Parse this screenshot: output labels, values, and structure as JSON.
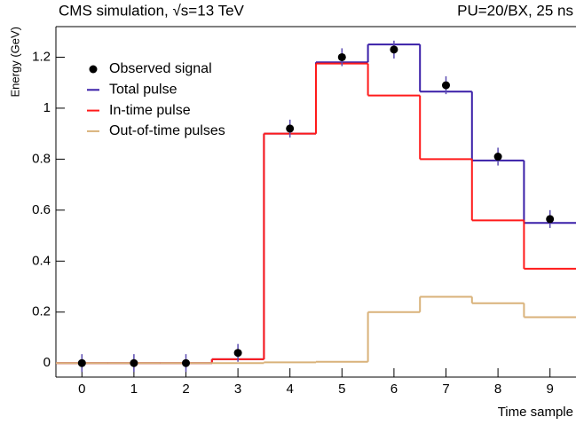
{
  "chart_data": {
    "type": "step",
    "title": "CMS simulation, √s=13 TeV",
    "subtitle": "PU=20/BX, 25 ns",
    "x_label": "Time sample",
    "y_label": "Energy (GeV)",
    "x": [
      0,
      1,
      2,
      3,
      4,
      5,
      6,
      7,
      8,
      9
    ],
    "xlim": [
      -0.5,
      9.5
    ],
    "xticks": [
      0,
      1,
      2,
      3,
      4,
      5,
      6,
      7,
      8,
      9
    ],
    "ylim": [
      -0.055,
      1.32
    ],
    "yticks": [
      0,
      0.2,
      0.4,
      0.6,
      0.8,
      1,
      1.2
    ],
    "legend": "top-left",
    "series": [
      {
        "name": "Observed signal",
        "kind": "points",
        "color": "#000000",
        "values": [
          0,
          0,
          0,
          0.04,
          0.92,
          1.2,
          1.23,
          1.09,
          0.81,
          0.565
        ],
        "errors": [
          0.035,
          0.035,
          0.035,
          0.035,
          0.035,
          0.035,
          0.035,
          0.035,
          0.035,
          0.035
        ]
      },
      {
        "name": "Total pulse",
        "kind": "step",
        "color": "#3a1fa8",
        "values": [
          0,
          0,
          0,
          0.015,
          0.9,
          1.18,
          1.25,
          1.065,
          0.795,
          0.55
        ]
      },
      {
        "name": "In-time pulse",
        "kind": "step",
        "color": "#ff1a1a",
        "values": [
          0,
          0,
          0,
          0.015,
          0.9,
          1.175,
          1.05,
          0.8,
          0.56,
          0.37
        ]
      },
      {
        "name": "Out-of-time pulses",
        "kind": "step",
        "color": "#d9b27a",
        "values": [
          0,
          0,
          0,
          0,
          0.003,
          0.005,
          0.2,
          0.26,
          0.235,
          0.18
        ]
      }
    ]
  }
}
